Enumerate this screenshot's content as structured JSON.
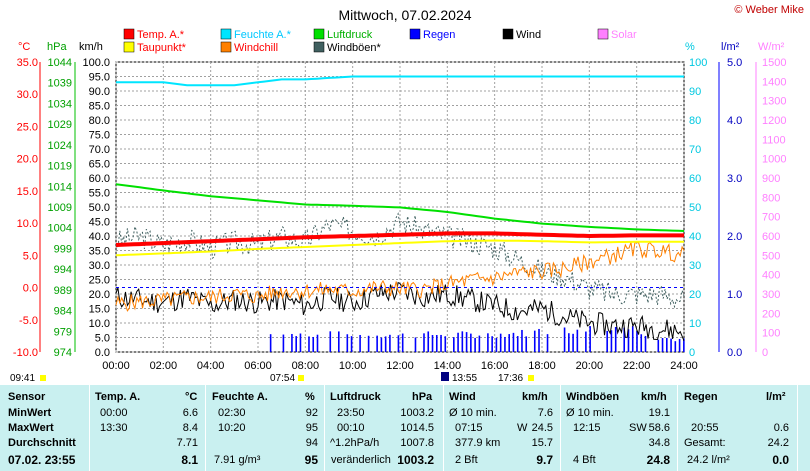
{
  "title": "Mittwoch, 07.02.2024",
  "copyright": "© Weber Mike",
  "axis_units": {
    "temp": "°C",
    "pressure": "hPa",
    "wind": "km/h",
    "percent": "%",
    "rain": "l/m²",
    "solar": "W/m²"
  },
  "legend": [
    {
      "label": "Temp. A.*",
      "color": "#ff0000",
      "text_color": "#ff0000"
    },
    {
      "label": "Feuchte A.*",
      "color": "#00e5ff",
      "text_color": "#00c8ff"
    },
    {
      "label": "Luftdruck",
      "color": "#00e000",
      "text_color": "#00b000"
    },
    {
      "label": "Regen",
      "color": "#0000ff",
      "text_color": "#0000ff"
    },
    {
      "label": "Wind",
      "color": "#000000",
      "text_color": "#000000"
    },
    {
      "label": "Solar",
      "color": "#ff80ff",
      "text_color": "#ff80ff"
    },
    {
      "label": "Taupunkt*",
      "color": "#ffff00",
      "text_color": "#ff0000"
    },
    {
      "label": "Windchill",
      "color": "#ff8000",
      "text_color": "#ff0000"
    },
    {
      "label": "Windböen*",
      "color": "#406060",
      "text_color": "#000000"
    }
  ],
  "time_markers": {
    "sunrise": "07:54",
    "sunset": "17:36",
    "moonrise": "09:41",
    "moonset": "13:55"
  },
  "chart_data": {
    "type": "line",
    "x_ticks": [
      "00:00",
      "02:00",
      "04:00",
      "06:00",
      "08:00",
      "10:00",
      "12:00",
      "14:00",
      "16:00",
      "18:00",
      "20:00",
      "22:00",
      "24:00"
    ],
    "axes": {
      "temp_ticks": [
        "35.0",
        "30.0",
        "25.0",
        "20.0",
        "15.0",
        "10.0",
        "5.0",
        "0.0",
        "-5.0",
        "-10.0"
      ],
      "pressure_ticks": [
        "1044",
        "1039",
        "1034",
        "1029",
        "1024",
        "1019",
        "1014",
        "1009",
        "1004",
        "999",
        "994",
        "989",
        "984",
        "979",
        "974"
      ],
      "wind_ticks": [
        "100.0",
        "95.0",
        "90.0",
        "85.0",
        "80.0",
        "75.0",
        "70.0",
        "65.0",
        "60.0",
        "55.0",
        "50.0",
        "45.0",
        "40.0",
        "35.0",
        "30.0",
        "25.0",
        "20.0",
        "15.0",
        "10.0",
        "5.0",
        "0.0"
      ],
      "percent_ticks": [
        "100",
        "90",
        "80",
        "70",
        "60",
        "50",
        "40",
        "30",
        "20",
        "10",
        "0"
      ],
      "rain_ticks": [
        "5.0",
        "4.0",
        "3.0",
        "2.0",
        "1.0",
        "0.0"
      ],
      "solar_ticks": [
        "1500",
        "1400",
        "1300",
        "1200",
        "1100",
        "1000",
        "900",
        "800",
        "700",
        "600",
        "500",
        "400",
        "300",
        "200",
        "100",
        "0"
      ],
      "temp_range": [
        -10,
        35
      ],
      "pressure_range": [
        974,
        1044
      ],
      "wind_range": [
        0,
        100
      ],
      "percent_range": [
        0,
        100
      ],
      "rain_range": [
        0,
        5
      ],
      "solar_range": [
        0,
        1500
      ]
    },
    "series": [
      {
        "name": "Temp. A.*",
        "axis": "temp",
        "color": "#ff0000",
        "hours": [
          0,
          2,
          4,
          6,
          8,
          10,
          12,
          14,
          16,
          18,
          20,
          22,
          24
        ],
        "values": [
          6.6,
          6.9,
          7.2,
          7.5,
          7.8,
          8.0,
          8.2,
          8.4,
          8.4,
          8.2,
          8.0,
          8.1,
          8.1
        ]
      },
      {
        "name": "Taupunkt*",
        "axis": "temp",
        "color": "#ffff00",
        "hours": [
          0,
          2,
          4,
          6,
          8,
          10,
          12,
          14,
          16,
          18,
          20,
          22,
          24
        ],
        "values": [
          5.0,
          5.3,
          5.6,
          6.0,
          6.3,
          6.6,
          6.9,
          7.2,
          7.3,
          7.2,
          7.0,
          7.1,
          7.1
        ]
      },
      {
        "name": "Feuchte A.*",
        "axis": "percent",
        "color": "#00e5ff",
        "hours": [
          0,
          2,
          3,
          4,
          5,
          6,
          7,
          8,
          10,
          12,
          14,
          16,
          18,
          20,
          22,
          24
        ],
        "values": [
          93,
          93,
          92,
          92,
          92,
          93,
          94,
          94,
          95,
          95,
          95,
          95,
          95,
          95,
          95,
          95
        ]
      },
      {
        "name": "Luftdruck",
        "axis": "pressure",
        "color": "#00e000",
        "hours": [
          0,
          2,
          4,
          6,
          8,
          10,
          12,
          14,
          16,
          18,
          20,
          22,
          24
        ],
        "values": [
          1014.5,
          1013.0,
          1011.6,
          1010.6,
          1009.6,
          1009.3,
          1008.9,
          1007.8,
          1006.2,
          1005.0,
          1004.2,
          1003.6,
          1003.2
        ]
      },
      {
        "name": "Windchill",
        "axis": "temp",
        "color": "#ff8000",
        "hours": [
          0,
          1,
          2,
          3,
          4,
          5,
          6,
          7,
          8,
          9,
          10,
          11,
          12,
          13,
          14,
          15,
          16,
          17,
          18,
          19,
          20,
          21,
          22,
          23,
          24
        ],
        "values": [
          -2.5,
          -2.2,
          -2.0,
          -1.6,
          -1.5,
          -1.0,
          -1.4,
          -0.5,
          -0.5,
          -0.3,
          -0.6,
          0.0,
          -0.2,
          -0.3,
          0.5,
          1.2,
          1.5,
          2.3,
          2.5,
          3.0,
          4.0,
          5.0,
          6.0,
          5.7,
          5.0
        ]
      },
      {
        "name": "Wind",
        "axis": "wind",
        "color": "#000000",
        "hours": [
          0,
          1,
          2,
          3,
          4,
          5,
          6,
          7,
          8,
          9,
          10,
          11,
          12,
          13,
          14,
          15,
          16,
          17,
          18,
          19,
          20,
          21,
          22,
          23,
          24
        ],
        "values": [
          19,
          18,
          17,
          19,
          16,
          18,
          17,
          18,
          16,
          19,
          17,
          20,
          21,
          19,
          20,
          18,
          16,
          14,
          15,
          12,
          10,
          9,
          9,
          8,
          7
        ]
      },
      {
        "name": "Windböen*",
        "axis": "wind",
        "color": "#406060",
        "hours": [
          0,
          1,
          2,
          3,
          4,
          5,
          6,
          7,
          8,
          9,
          10,
          11,
          12,
          13,
          14,
          15,
          16,
          17,
          18,
          19,
          20,
          21,
          22,
          23,
          24
        ],
        "values": [
          38,
          40,
          37,
          39,
          36,
          38,
          37,
          40,
          38,
          44,
          42,
          40,
          45,
          42,
          40,
          38,
          36,
          32,
          28,
          26,
          22,
          20,
          20,
          20,
          18
        ]
      },
      {
        "name": "Regen",
        "axis": "rain",
        "color": "#0000ff",
        "hours": [
          6.5,
          8,
          10,
          12,
          14,
          16,
          18,
          20,
          21,
          22,
          22.5,
          23,
          24
        ],
        "values": [
          0.3,
          0.3,
          0.3,
          0.3,
          0.3,
          0.3,
          0.35,
          0.4,
          0.45,
          0.4,
          0.3,
          0.25,
          0.2
        ]
      }
    ]
  },
  "table": {
    "headers": {
      "sensor": "Sensor",
      "temp": "Temp. A.",
      "temp_unit": "°C",
      "hum": "Feuchte A.",
      "hum_unit": "%",
      "press": "Luftdruck",
      "press_unit": "hPa",
      "wind": "Wind",
      "wind_unit": "km/h",
      "gust": "Windböen",
      "gust_unit": "km/h",
      "rain": "Regen",
      "rain_unit": "l/m²"
    },
    "rows": [
      {
        "label": "MinWert",
        "temp_time": "00:00",
        "temp": "6.6",
        "hum_time": "02:30",
        "hum": "92",
        "press_time": "23:50",
        "press": "1003.2",
        "wind_label": "Ø 10 min.",
        "wind": "7.6",
        "gust_label": "Ø 10 min.",
        "gust": "19.1",
        "rain_label": "",
        "rain": ""
      },
      {
        "label": "MaxWert",
        "temp_time": "13:30",
        "temp": "8.4",
        "hum_time": "10:20",
        "hum": "95",
        "press_time": "00:10",
        "press": "1014.5",
        "wind_label": "07:15",
        "wind_dir": "W",
        "wind": "24.5",
        "gust_label": "12:15",
        "gust_dir": "SW",
        "gust": "58.6",
        "rain_label": "20:55",
        "rain": "0.6"
      },
      {
        "label": "Durchschnitt",
        "temp_time": "",
        "temp": "7.71",
        "hum_time": "",
        "hum": "94",
        "press_time": "^1.2hPa/h",
        "press": "1007.8",
        "wind_label": "377.9 km",
        "wind": "15.7",
        "gust_label": "",
        "gust": "34.8",
        "rain_label": "Gesamt:",
        "rain": "24.2"
      },
      {
        "label": "07.02. 23:55",
        "temp_time": "",
        "temp": "8.1",
        "hum_time": "7.91 g/m³",
        "hum": "95",
        "press_time": "veränderlich",
        "press": "1003.2",
        "wind_label": "2 Bft",
        "wind": "9.7",
        "gust_label": "4 Bft",
        "gust": "24.8",
        "rain_label": "24.2 l/m²",
        "rain": "0.0"
      }
    ]
  }
}
